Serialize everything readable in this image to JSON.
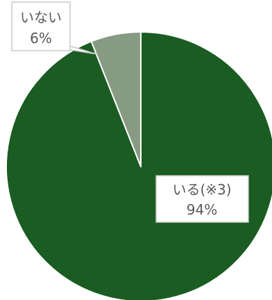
{
  "chart_data": {
    "type": "pie",
    "start_angle_deg": 0,
    "direction": "clockwise",
    "slices": [
      {
        "label": "いる(※3)",
        "value": 94,
        "value_label": "94%",
        "color": "#1a5c22"
      },
      {
        "label": "いない",
        "value": 6,
        "value_label": "6%",
        "color": "#879a82"
      }
    ],
    "slice_border_color": "#ffffff",
    "callout_box_fill": "#ffffff",
    "callout_box_border": "#c8c8c8",
    "callout_text_color": "#595959"
  }
}
